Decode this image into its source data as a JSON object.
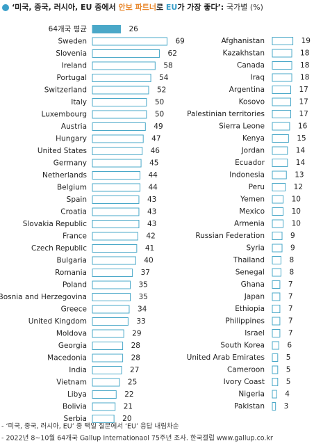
{
  "title": [
    {
      "text": "‘미국, 중국, 러시아, EU 중에서 ",
      "color": "#222222",
      "weight": "bold"
    },
    {
      "text": "안보 파트너",
      "color": "#e8862a",
      "weight": "bold"
    },
    {
      "text": "로 ",
      "color": "#222222",
      "weight": "bold"
    },
    {
      "text": "EU",
      "color": "#3a9fc9",
      "weight": "bold"
    },
    {
      "text": "가 가장 좋다’: ",
      "color": "#222222",
      "weight": "bold"
    },
    {
      "text": "국가별 (%)",
      "color": "#333333",
      "weight": "normal"
    }
  ],
  "notes": [
    "- ‘미국, 중국, 러시아, EU’ 중 택일 질문에서 ‘EU’ 응답 내림차순",
    "- 2022년 8~10월 64개국 Gallup Internationaol 75주년 조사. 한국갤럽 www.gallup.co.kr"
  ],
  "chart_data": [
    {
      "type": "bar",
      "color": "#4aa8c8",
      "highlight": 0,
      "xlim": [
        0,
        70
      ],
      "categories": [
        "64개국 평균",
        "Sweden",
        "Slovenia",
        "Ireland",
        "Portugal",
        "Switzerland",
        "Italy",
        "Luxembourg",
        "Austria",
        "Hungary",
        "United States",
        "Germany",
        "Netherlands",
        "Belgium",
        "Spain",
        "Croatia",
        "Slovakia Republic",
        "France",
        "Czech Republic",
        "Bulgaria",
        "Romania",
        "Poland",
        "Bosnia and Herzegovina",
        "Greece",
        "United Kingdom",
        "Moldova",
        "Georgia",
        "Macedonia",
        "India",
        "Vietnam",
        "Libya",
        "Bolivia",
        "Serbia"
      ],
      "values": [
        26,
        69,
        62,
        58,
        54,
        52,
        50,
        50,
        49,
        47,
        46,
        45,
        44,
        44,
        43,
        43,
        43,
        42,
        41,
        40,
        37,
        35,
        35,
        34,
        33,
        29,
        28,
        28,
        27,
        25,
        22,
        21,
        20
      ]
    },
    {
      "type": "bar",
      "color": "#4aa8c8",
      "xlim": [
        0,
        70
      ],
      "categories": [
        "Afghanistan",
        "Kazakhstan",
        "Canada",
        "Iraq",
        "Argentina",
        "Kosovo",
        "Palestinian territories",
        "Sierra Leone",
        "Kenya",
        "Jordan",
        "Ecuador",
        "Indonesia",
        "Peru",
        "Yemen",
        "Mexico",
        "Armenia",
        "Russian Federation",
        "Syria",
        "Thailand",
        "Senegal",
        "Ghana",
        "Japan",
        "Ethiopia",
        "Philippines",
        "Israel",
        "South Korea",
        "United Arab Emirates",
        "Cameroon",
        "Ivory Coast",
        "Nigeria",
        "Pakistan"
      ],
      "values": [
        19,
        18,
        18,
        18,
        17,
        17,
        17,
        16,
        15,
        14,
        14,
        13,
        12,
        10,
        10,
        10,
        9,
        9,
        8,
        8,
        7,
        7,
        7,
        7,
        7,
        6,
        5,
        5,
        5,
        4,
        3
      ]
    }
  ]
}
